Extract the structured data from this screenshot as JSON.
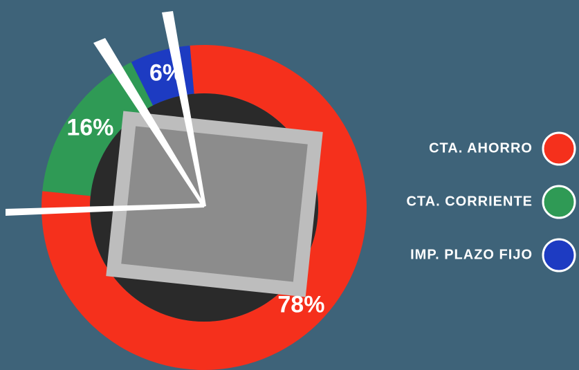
{
  "chart_data": {
    "type": "pie",
    "categories": [
      "CTA. AHORRO",
      "CTA. CORRIENTE",
      "IMP. PLAZO FIJO"
    ],
    "values": [
      78,
      16,
      6
    ],
    "value_labels": [
      "78%",
      "16%",
      "6%"
    ],
    "colors": [
      "#f5301c",
      "#2f9a55",
      "#1d3bc2"
    ]
  }
}
